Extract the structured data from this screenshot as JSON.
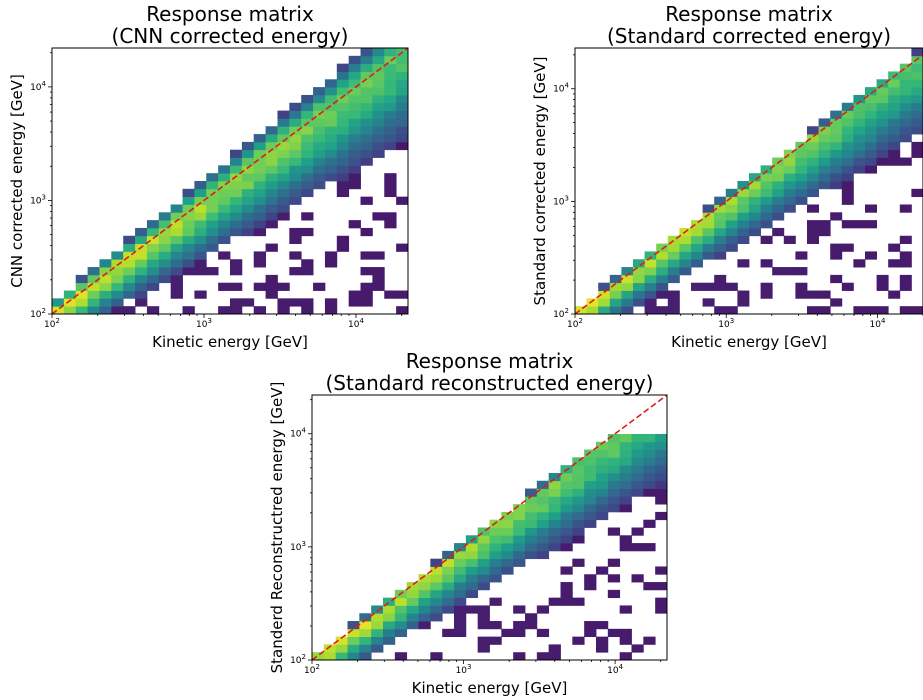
{
  "chart_data": [
    {
      "type": "heatmap",
      "title": [
        "Response matrix",
        "(CNN corrected energy)"
      ],
      "xlabel": "Kinetic energy [GeV]",
      "ylabel": "CNN corrected energy [GeV]",
      "x_scale": "log",
      "y_scale": "log",
      "xlim": [
        100,
        22000
      ],
      "ylim": [
        100,
        22000
      ],
      "x_ticks": [
        {
          "value": 100,
          "base": "10",
          "exp": "2"
        },
        {
          "value": 1000,
          "base": "10",
          "exp": "3"
        },
        {
          "value": 10000,
          "base": "10",
          "exp": "4"
        }
      ],
      "y_ticks": [
        {
          "value": 100,
          "base": "10",
          "exp": "2"
        },
        {
          "value": 1000,
          "base": "10",
          "exp": "3"
        },
        {
          "value": 10000,
          "base": "10",
          "exp": "4"
        }
      ],
      "colormap": "viridis",
      "diagonal_line": {
        "style": "dashed",
        "color": "#e01b1b"
      },
      "model": {
        "upper_spread": 0.62,
        "lower_spread": 1.25,
        "peak_ratio": 0.97,
        "sparse_bottom": true
      }
    },
    {
      "type": "heatmap",
      "title": [
        "Response matrix",
        "(Standard corrected energy)"
      ],
      "xlabel": "Kinetic energy [GeV]",
      "ylabel": "Standard corrected energy [GeV]",
      "x_scale": "log",
      "y_scale": "log",
      "xlim": [
        100,
        20000
      ],
      "ylim": [
        100,
        23000
      ],
      "x_ticks": [
        {
          "value": 100,
          "base": "10",
          "exp": "2"
        },
        {
          "value": 1000,
          "base": "10",
          "exp": "3"
        },
        {
          "value": 10000,
          "base": "10",
          "exp": "4"
        }
      ],
      "y_ticks": [
        {
          "value": 100,
          "base": "10",
          "exp": "2"
        },
        {
          "value": 1000,
          "base": "10",
          "exp": "3"
        },
        {
          "value": 10000,
          "base": "10",
          "exp": "4"
        }
      ],
      "colormap": "viridis",
      "diagonal_line": {
        "style": "dashed",
        "color": "#e01b1b"
      },
      "model": {
        "upper_spread": 0.05,
        "lower_spread": 1.05,
        "peak_ratio": 0.99,
        "sparse_bottom": true
      }
    },
    {
      "type": "heatmap",
      "title": [
        "Response matrix",
        "(Standard reconstructed energy)"
      ],
      "xlabel": "Kinetic energy [GeV]",
      "ylabel": "Standerd Reconstructred energy [GeV]",
      "x_scale": "log",
      "y_scale": "log",
      "xlim": [
        100,
        22000
      ],
      "ylim": [
        100,
        22000
      ],
      "x_ticks": [
        {
          "value": 100,
          "base": "10",
          "exp": "2"
        },
        {
          "value": 1000,
          "base": "10",
          "exp": "3"
        },
        {
          "value": 10000,
          "base": "10",
          "exp": "4"
        }
      ],
      "y_ticks": [
        {
          "value": 100,
          "base": "10",
          "exp": "2"
        },
        {
          "value": 1000,
          "base": "10",
          "exp": "3"
        },
        {
          "value": 10000,
          "base": "10",
          "exp": "4"
        }
      ],
      "colormap": "viridis",
      "diagonal_line": {
        "style": "dashed",
        "color": "#e01b1b"
      },
      "model": {
        "upper_spread": 0.04,
        "lower_spread": 1.15,
        "peak_ratio": 0.96,
        "sparse_bottom": true,
        "y_cap": 10000
      }
    }
  ]
}
